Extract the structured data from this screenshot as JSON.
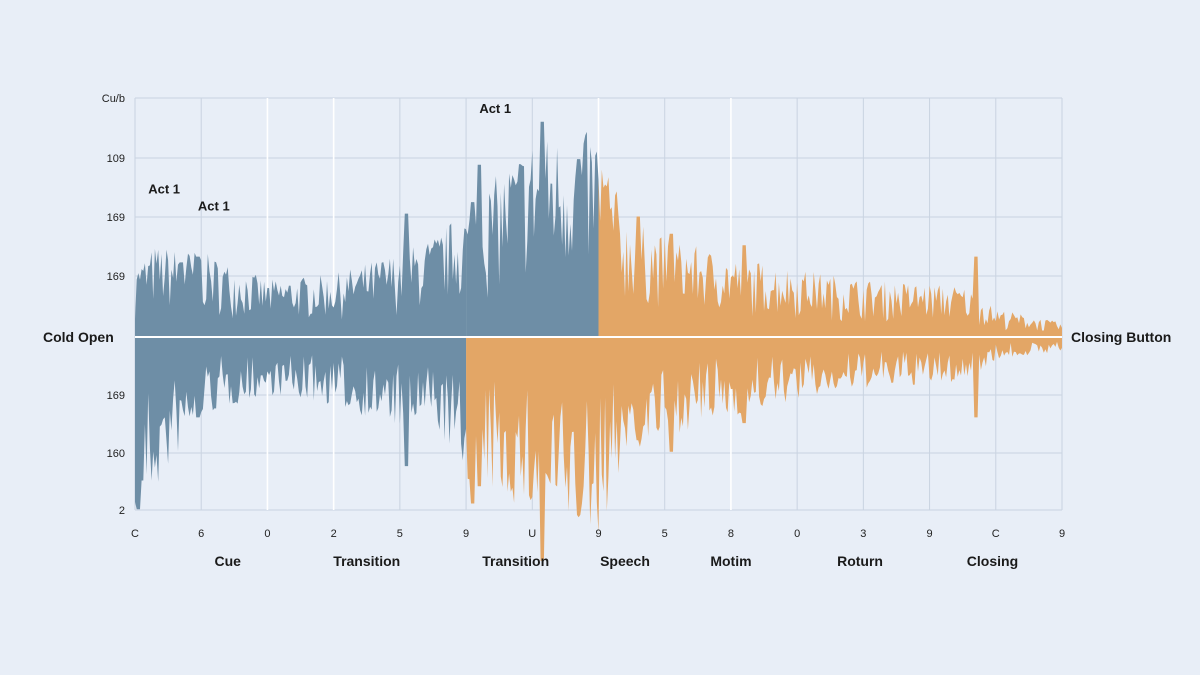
{
  "chart_data": {
    "type": "area",
    "title": "",
    "xlabel": "",
    "ylabel": "",
    "y_ticks": [
      "Cu/b",
      "109",
      "169",
      "169",
      "",
      "169",
      "160",
      "2"
    ],
    "x_ticks": [
      "C",
      "6",
      "0",
      "2",
      "5",
      "9",
      "U",
      "9",
      "5",
      "8",
      "0",
      "3",
      "9",
      "C",
      "9"
    ],
    "xlim": [
      0,
      14
    ],
    "ylim": [
      -1,
      1
    ],
    "grid": true,
    "segments": [
      "Cue",
      "Transition",
      "Transition",
      "Speech",
      "Motim",
      "Roturn",
      "Closing"
    ],
    "segment_positions": [
      1.4,
      3.5,
      5.75,
      7.4,
      9.0,
      10.95,
      12.95
    ],
    "left_label": "Cold Open",
    "right_label": "Closing Button",
    "annotations": [
      {
        "text": "Act 1",
        "x": 0.2,
        "y": 0.5
      },
      {
        "text": "Act 1",
        "x": 0.95,
        "y": 0.44
      },
      {
        "text": "Act 1",
        "x": 5.2,
        "y": 0.78
      }
    ],
    "series": [
      {
        "color": "#6e8ea6",
        "x_range": [
          0,
          7.0
        ],
        "polarity": "both_then_top",
        "split": 5.0
      },
      {
        "color": "#e3a666",
        "x_range": [
          5.0,
          14.0
        ],
        "polarity": "bottom_then_both",
        "split": 7.0
      }
    ],
    "envelope": [
      [
        0.0,
        0.25,
        0.6
      ],
      [
        0.3,
        0.32,
        0.55
      ],
      [
        1.0,
        0.3,
        0.28
      ],
      [
        2.0,
        0.2,
        0.2
      ],
      [
        3.0,
        0.22,
        0.24
      ],
      [
        4.0,
        0.3,
        0.32
      ],
      [
        4.5,
        0.35,
        0.3
      ],
      [
        5.0,
        0.45,
        0.5
      ],
      [
        6.0,
        0.7,
        0.62
      ],
      [
        7.0,
        0.72,
        0.7
      ],
      [
        7.4,
        0.42,
        0.42
      ],
      [
        8.0,
        0.35,
        0.35
      ],
      [
        9.0,
        0.28,
        0.28
      ],
      [
        10.0,
        0.24,
        0.22
      ],
      [
        11.0,
        0.2,
        0.18
      ],
      [
        12.5,
        0.18,
        0.16
      ],
      [
        13.0,
        0.1,
        0.08
      ],
      [
        14.0,
        0.05,
        0.05
      ]
    ],
    "peaks": [
      {
        "x": 0.05,
        "top": 0.2,
        "bottom": 0.6
      },
      {
        "x": 0.1,
        "top": 0.18,
        "bottom": 0.5
      },
      {
        "x": 0.7,
        "top": 0.26,
        "bottom": 0.22
      },
      {
        "x": 0.95,
        "top": 0.28,
        "bottom": 0.28
      },
      {
        "x": 4.1,
        "top": 0.43,
        "bottom": 0.45
      },
      {
        "x": 5.1,
        "top": 0.47,
        "bottom": 0.58
      },
      {
        "x": 5.2,
        "top": 0.6,
        "bottom": 0.52
      },
      {
        "x": 5.7,
        "top": 0.52,
        "bottom": 0.5
      },
      {
        "x": 6.15,
        "top": 0.75,
        "bottom": 0.78
      },
      {
        "x": 6.7,
        "top": 0.62,
        "bottom": 0.62
      },
      {
        "x": 7.6,
        "top": 0.42,
        "bottom": 0.36
      },
      {
        "x": 8.1,
        "top": 0.36,
        "bottom": 0.4
      },
      {
        "x": 9.2,
        "top": 0.32,
        "bottom": 0.3
      },
      {
        "x": 12.7,
        "top": 0.28,
        "bottom": 0.28
      }
    ]
  }
}
